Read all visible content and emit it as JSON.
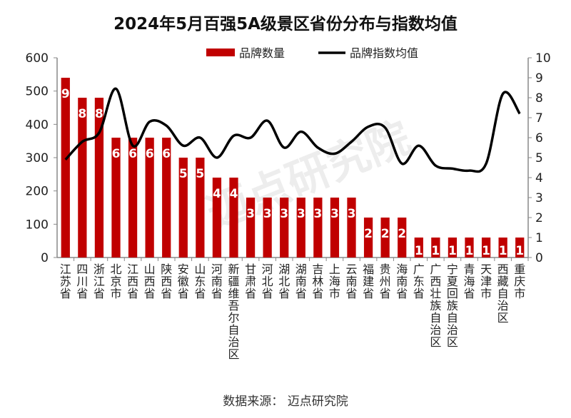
{
  "title": "2024年5月百强5A级景区省份分布与指数均值",
  "source": "数据来源：  迈点研究院",
  "watermark": "迈点研究院",
  "colors": {
    "bar": "#c00000",
    "line": "#000000"
  },
  "chart_data": {
    "type": "bar+line",
    "title": "2024年5月百强5A级景区省份分布与指数均值",
    "categories": [
      "江苏省",
      "四川省",
      "浙江省",
      "北京市",
      "江西省",
      "山西省",
      "陕西省",
      "安徽省",
      "山东省",
      "河南省",
      "新疆维吾尔自治区",
      "甘肃省",
      "河北省",
      "湖北省",
      "湖南省",
      "吉林省",
      "上海市",
      "云南省",
      "福建省",
      "贵州省",
      "海南省",
      "广东省",
      "广西壮族自治区",
      "宁夏回族自治区",
      "青海省",
      "天津市",
      "西藏自治区",
      "重庆市"
    ],
    "series": [
      {
        "name": "品牌数量",
        "type": "bar",
        "axis": "left",
        "values": [
          540,
          480,
          480,
          360,
          360,
          360,
          360,
          300,
          300,
          240,
          240,
          180,
          180,
          180,
          180,
          180,
          180,
          180,
          120,
          120,
          120,
          60,
          60,
          60,
          60,
          60,
          60,
          60
        ],
        "data_labels": [
          "9",
          "8",
          "8",
          "6",
          "6",
          "6",
          "6",
          "5",
          "5",
          "4",
          "4",
          "3",
          "3",
          "3",
          "3",
          "3",
          "3",
          "3",
          "2",
          "2",
          "2",
          "1",
          "1",
          "1",
          "1",
          "1",
          "1",
          "1"
        ]
      },
      {
        "name": "品牌指数均值",
        "type": "line",
        "axis": "right",
        "values": [
          4.9,
          5.8,
          6.25,
          8.45,
          5.6,
          6.8,
          6.6,
          5.6,
          6.0,
          5.0,
          6.1,
          6.0,
          6.85,
          5.5,
          6.3,
          5.5,
          5.2,
          5.8,
          6.55,
          6.5,
          4.7,
          5.6,
          4.6,
          4.45,
          4.35,
          4.7,
          8.2,
          7.2
        ]
      }
    ],
    "left_axis": {
      "ylim": [
        0,
        600
      ],
      "ticks": [
        "0",
        "100",
        "200",
        "300",
        "400",
        "500",
        "600"
      ]
    },
    "right_axis": {
      "ylim": [
        0,
        10
      ],
      "ticks": [
        "0",
        "1",
        "2",
        "3",
        "4",
        "5",
        "6",
        "7",
        "8",
        "9",
        "10"
      ]
    },
    "legend_position": "top-center",
    "grid": false
  }
}
